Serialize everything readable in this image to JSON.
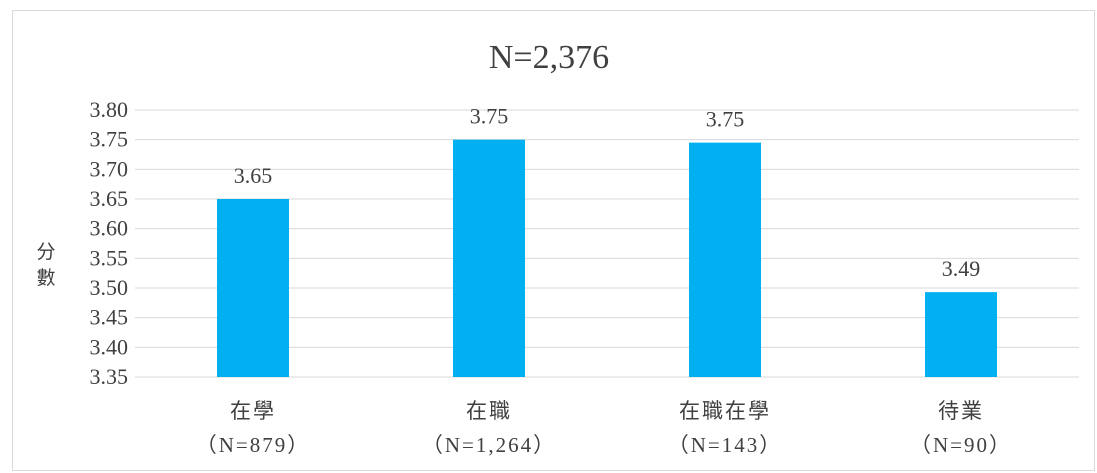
{
  "chart_data": {
    "type": "bar",
    "title": "N=2,376",
    "ylabel": "分數",
    "categories": [
      {
        "label": "在學",
        "n": "（N=879）"
      },
      {
        "label": "在職",
        "n": "（N=1,264）"
      },
      {
        "label": "在職在學",
        "n": "（N=143）"
      },
      {
        "label": "待業",
        "n": "（N=90）"
      }
    ],
    "values": [
      3.65,
      3.75,
      3.745,
      3.493
    ],
    "data_labels": [
      "3.65",
      "3.75",
      "3.75",
      "3.49"
    ],
    "ylim": [
      3.35,
      3.8
    ],
    "yticks": [
      "3.80",
      "3.75",
      "3.70",
      "3.65",
      "3.60",
      "3.55",
      "3.50",
      "3.45",
      "3.40",
      "3.35"
    ],
    "grid": true,
    "bar_color": "#00B0F0",
    "grid_color": "#d9d9d9"
  }
}
